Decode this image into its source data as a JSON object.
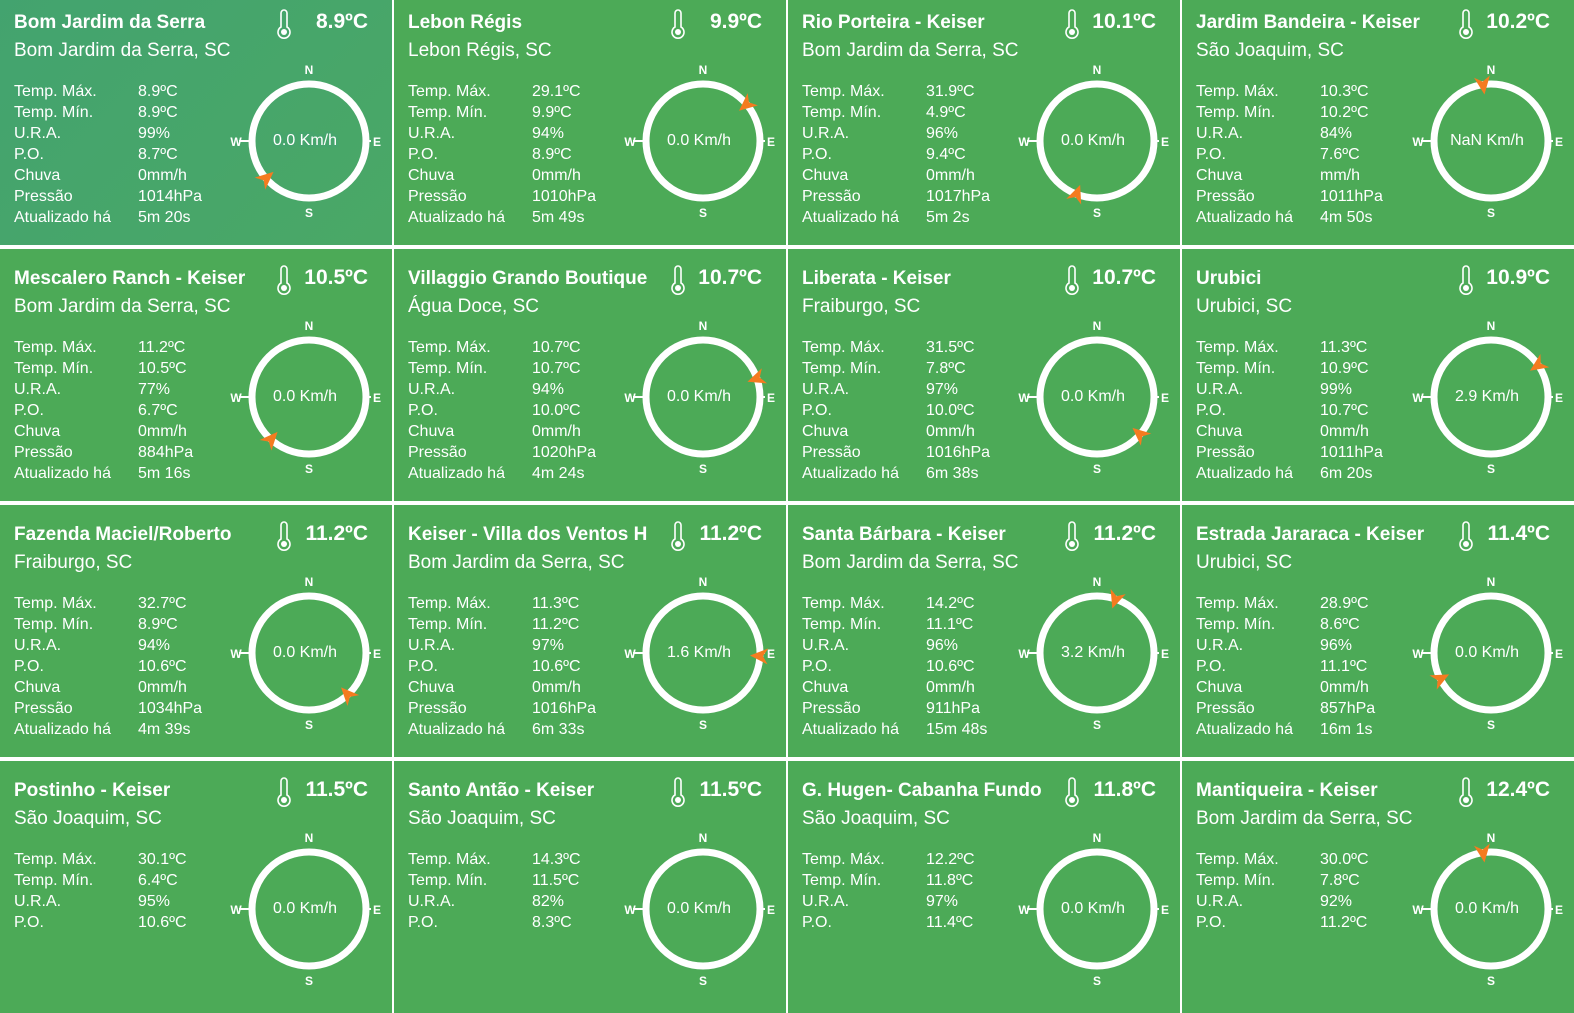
{
  "labels": [
    "Temp. Máx.",
    "Temp. Mín.",
    "U.R.A.",
    "P.O.",
    "Chuva",
    "Pressão",
    "Atualizado há"
  ],
  "compass": {
    "n": "N",
    "e": "E",
    "s": "S",
    "w": "W"
  },
  "stations": [
    {
      "name": "Bom Jardim da Serra",
      "location": "Bom Jardim da Serra, SC",
      "temperature": "8.9ºC",
      "values": [
        "8.9ºC",
        "8.9ºC",
        "99%",
        "8.7ºC",
        "0mm/h",
        "1014hPa",
        "5m 20s"
      ],
      "wind_speed": "0.0 Km/h",
      "wind_direction": 229
    },
    {
      "name": "Lebon Régis",
      "location": "Lebon Régis, SC",
      "temperature": "9.9ºC",
      "values": [
        "29.1ºC",
        "9.9ºC",
        "94%",
        "8.9ºC",
        "0mm/h",
        "1010hPa",
        "5m 49s"
      ],
      "wind_speed": "0.0 Km/h",
      "wind_direction": 50
    },
    {
      "name": "Rio Porteira - Keiser",
      "location": "Bom Jardim da Serra, SC",
      "temperature": "10.1ºC",
      "values": [
        "31.9ºC",
        "4.9ºC",
        "96%",
        "9.4ºC",
        "0mm/h",
        "1017hPa",
        "5m 2s"
      ],
      "wind_speed": "0.0 Km/h",
      "wind_direction": 201
    },
    {
      "name": "Jardim Bandeira - Keiser",
      "location": "São Joaquim, SC",
      "temperature": "10.2ºC",
      "values": [
        "10.3ºC",
        "10.2ºC",
        "84%",
        "7.6ºC",
        "mm/h",
        "1011hPa",
        "4m 50s"
      ],
      "wind_speed": "NaN Km/h",
      "wind_direction": 352
    },
    {
      "name": "Mescalero Ranch - Keiser",
      "location": "Bom Jardim da Serra, SC",
      "temperature": "10.5ºC",
      "values": [
        "11.2ºC",
        "10.5ºC",
        "77%",
        "6.7ºC",
        "0mm/h",
        "884hPa",
        "5m 16s"
      ],
      "wind_speed": "0.0 Km/h",
      "wind_direction": 222
    },
    {
      "name": "Villaggio Grando Boutique",
      "location": "Água Doce, SC",
      "temperature": "10.7ºC",
      "values": [
        "10.7ºC",
        "10.7ºC",
        "94%",
        "10.0ºC",
        "0mm/h",
        "1020hPa",
        "4m 24s"
      ],
      "wind_speed": "0.0 Km/h",
      "wind_direction": 71
    },
    {
      "name": "Liberata - Keiser",
      "location": "Fraiburgo, SC",
      "temperature": "10.7ºC",
      "values": [
        "31.5ºC",
        "7.8ºC",
        "97%",
        "10.0ºC",
        "0mm/h",
        "1016hPa",
        "6m 38s"
      ],
      "wind_speed": "0.0 Km/h",
      "wind_direction": 131
    },
    {
      "name": "Urubici",
      "location": "Urubici, SC",
      "temperature": "10.9ºC",
      "values": [
        "11.3ºC",
        "10.9ºC",
        "99%",
        "10.7ºC",
        "0mm/h",
        "1011hPa",
        "6m 20s"
      ],
      "wind_speed": "2.9 Km/h",
      "wind_direction": 56
    },
    {
      "name": "Fazenda Maciel/Roberto",
      "location": "Fraiburgo, SC",
      "temperature": "11.2ºC",
      "values": [
        "32.7ºC",
        "8.9ºC",
        "94%",
        "10.6ºC",
        "0mm/h",
        "1034hPa",
        "4m 39s"
      ],
      "wind_speed": "0.0 Km/h",
      "wind_direction": 137
    },
    {
      "name": "Keiser - Villa dos Ventos H",
      "location": "Bom Jardim da Serra, SC",
      "temperature": "11.2ºC",
      "values": [
        "11.3ºC",
        "11.2ºC",
        "97%",
        "10.6ºC",
        "0mm/h",
        "1016hPa",
        "6m 33s"
      ],
      "wind_speed": "1.6 Km/h",
      "wind_direction": 93
    },
    {
      "name": "Santa Bárbara - Keiser",
      "location": "Bom Jardim da Serra, SC",
      "temperature": "11.2ºC",
      "values": [
        "14.2ºC",
        "11.1ºC",
        "96%",
        "10.6ºC",
        "0mm/h",
        "911hPa",
        "15m 48s"
      ],
      "wind_speed": "3.2 Km/h",
      "wind_direction": 19
    },
    {
      "name": "Estrada Jararaca - Keiser",
      "location": "Urubici, SC",
      "temperature": "11.4ºC",
      "values": [
        "28.9ºC",
        "8.6ºC",
        "96%",
        "11.1ºC",
        "0mm/h",
        "857hPa",
        "16m 1s"
      ],
      "wind_speed": "0.0 Km/h",
      "wind_direction": 243
    },
    {
      "name": "Postinho - Keiser",
      "location": "São Joaquim, SC",
      "temperature": "11.5ºC",
      "values": [
        "30.1ºC",
        "6.4ºC",
        "95%",
        "10.6ºC"
      ],
      "wind_speed": "0.0 Km/h",
      "wind_direction": null
    },
    {
      "name": "Santo Antão - Keiser",
      "location": "São Joaquim, SC",
      "temperature": "11.5ºC",
      "values": [
        "14.3ºC",
        "11.5ºC",
        "82%",
        "8.3ºC"
      ],
      "wind_speed": "0.0 Km/h",
      "wind_direction": null
    },
    {
      "name": "G. Hugen- Cabanha Fundo",
      "location": "São Joaquim, SC",
      "temperature": "11.8ºC",
      "values": [
        "12.2ºC",
        "11.8ºC",
        "97%",
        "11.4ºC"
      ],
      "wind_speed": "0.0 Km/h",
      "wind_direction": null
    },
    {
      "name": "Mantiqueira - Keiser",
      "location": "Bom Jardim da Serra, SC",
      "temperature": "12.4ºC",
      "values": [
        "30.0ºC",
        "7.8ºC",
        "92%",
        "11.2ºC"
      ],
      "wind_speed": "0.0 Km/h",
      "wind_direction": 352
    }
  ]
}
